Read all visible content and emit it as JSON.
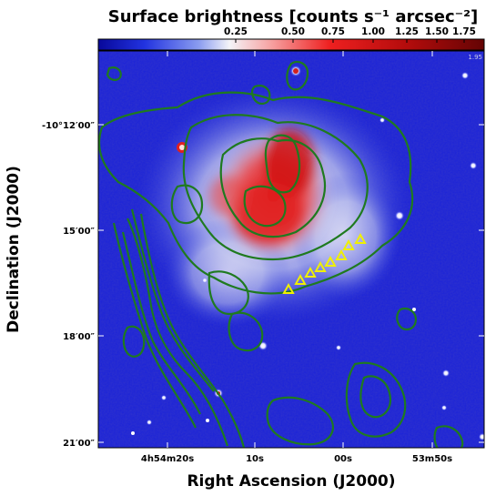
{
  "figure": {
    "colorbar_title": "Surface brightness [counts s⁻¹ arcsec⁻²]",
    "colorbar_ticks": [
      "0.25",
      "0.50",
      "0.75",
      "1.00",
      "1.25",
      "1.50",
      "1.75"
    ],
    "colorbar_corner_label": "1.95",
    "x_label": "Right Ascension (J2000)",
    "y_label": "Declination (J2000)",
    "x_ticks": [
      "4h54m20s",
      "10s",
      "00s",
      "53m50s"
    ],
    "y_ticks": [
      "-10°12′00″",
      "15′00″",
      "18′00″",
      "21′00″"
    ],
    "colors": {
      "background_blue": "#1a22d8",
      "emission_red": "#e0201a",
      "contour_green": "#1f7a1f",
      "marker_yellow": "#f0f000"
    },
    "triangle_markers": 8
  }
}
